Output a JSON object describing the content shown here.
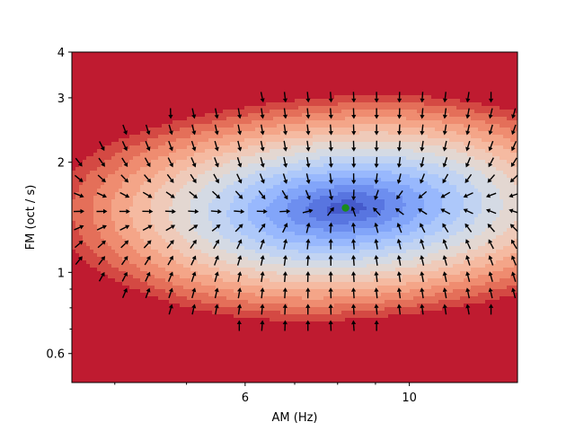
{
  "chart_data": {
    "type": "heatmap",
    "subtype": "contourf-with-quiver",
    "title": "",
    "xlabel": "AM (Hz)",
    "ylabel": "FM (oct / s)",
    "xscale": "log",
    "yscale": "log",
    "xlim": [
      3.5,
      14
    ],
    "ylim": [
      0.5,
      4
    ],
    "x_ticks": [
      6,
      10
    ],
    "x_tick_labels": [
      "6",
      "10"
    ],
    "y_ticks": [
      0.6,
      1,
      2,
      3,
      4
    ],
    "y_tick_labels": [
      "0.6",
      "1",
      "2",
      "3",
      "4"
    ],
    "colormap": "coolwarm",
    "field": {
      "description": "smooth basin with minimum at marker; arrows point toward minimum",
      "minimum": {
        "x": 8.2,
        "y": 1.5
      }
    },
    "marker": {
      "x": 8.2,
      "y": 1.5,
      "color": "#1a8c1a"
    },
    "quiver_grid": {
      "nx": 20,
      "ny": 20,
      "arrow_color": "#000000"
    },
    "grid": false
  }
}
